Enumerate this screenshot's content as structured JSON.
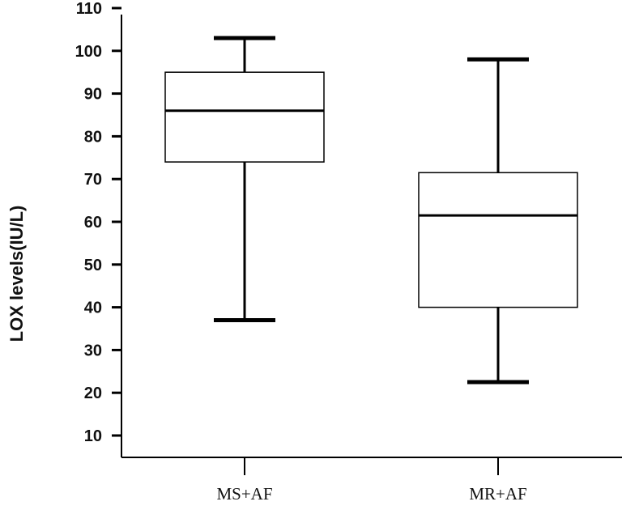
{
  "chart_data": {
    "type": "boxplot",
    "title": "",
    "xlabel": "",
    "ylabel": "LOX levels(IU/L)",
    "ylim": [
      0,
      110
    ],
    "yticks": [
      10,
      20,
      30,
      40,
      50,
      60,
      70,
      80,
      90,
      100,
      110
    ],
    "categories": [
      "MS+AF",
      "MR+AF"
    ],
    "boxes": [
      {
        "category": "MS+AF",
        "whisker_low": 37,
        "q1": 74,
        "median": 86,
        "q3": 95,
        "whisker_high": 103
      },
      {
        "category": "MR+AF",
        "whisker_low": 22.5,
        "q1": 40,
        "median": 61.5,
        "q3": 71.5,
        "whisker_high": 98
      }
    ],
    "grid": false,
    "colors": {
      "box_fill": "#ffffff",
      "line": "#000000"
    }
  }
}
